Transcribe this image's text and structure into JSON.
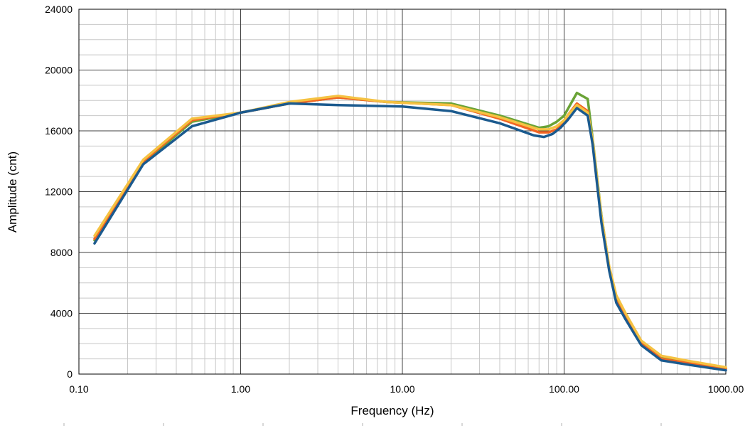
{
  "chart_data": {
    "type": "line",
    "title": "",
    "xlabel": "Frequency  (Hz)",
    "ylabel": "Amplitude (cnt)",
    "xscale": "log",
    "xlim": [
      0.1,
      1000
    ],
    "ylim": [
      0,
      24000
    ],
    "grid": true,
    "x_ticks": [
      {
        "value": 0.1,
        "label": "0.10"
      },
      {
        "value": 1,
        "label": "1.00"
      },
      {
        "value": 10,
        "label": "10.00"
      },
      {
        "value": 100,
        "label": "100.00"
      },
      {
        "value": 1000,
        "label": "1000.00"
      }
    ],
    "y_ticks": [
      {
        "value": 0,
        "label": "0"
      },
      {
        "value": 4000,
        "label": "4000"
      },
      {
        "value": 8000,
        "label": "8000"
      },
      {
        "value": 12000,
        "label": "12000"
      },
      {
        "value": 16000,
        "label": "16000"
      },
      {
        "value": 20000,
        "label": "20000"
      },
      {
        "value": 24000,
        "label": "24000"
      }
    ],
    "series": [
      {
        "color": "#6AA336",
        "points": [
          [
            0.125,
            8800
          ],
          [
            0.25,
            13900
          ],
          [
            0.5,
            16600
          ],
          [
            1,
            17200
          ],
          [
            2,
            17800
          ],
          [
            4,
            18200
          ],
          [
            8,
            17900
          ],
          [
            20,
            17800
          ],
          [
            40,
            17000
          ],
          [
            70,
            16200
          ],
          [
            80,
            16300
          ],
          [
            90,
            16600
          ],
          [
            100,
            17000
          ],
          [
            105,
            17400
          ],
          [
            120,
            18500
          ],
          [
            140,
            18100
          ],
          [
            150,
            15500
          ],
          [
            170,
            10500
          ],
          [
            190,
            7000
          ],
          [
            210,
            5000
          ],
          [
            240,
            3900
          ],
          [
            300,
            2100
          ],
          [
            400,
            1100
          ],
          [
            600,
            750
          ],
          [
            1000,
            380
          ]
        ]
      },
      {
        "color": "#F26522",
        "points": [
          [
            0.125,
            8900
          ],
          [
            0.25,
            14000
          ],
          [
            0.5,
            16700
          ],
          [
            1,
            17200
          ],
          [
            2,
            17800
          ],
          [
            4,
            18200
          ],
          [
            8,
            17900
          ],
          [
            20,
            17700
          ],
          [
            40,
            16800
          ],
          [
            70,
            15900
          ],
          [
            80,
            15900
          ],
          [
            90,
            16100
          ],
          [
            100,
            16600
          ],
          [
            105,
            17000
          ],
          [
            120,
            17800
          ],
          [
            140,
            17300
          ],
          [
            150,
            15300
          ],
          [
            170,
            10200
          ],
          [
            190,
            6900
          ],
          [
            210,
            4800
          ],
          [
            240,
            3800
          ],
          [
            300,
            2000
          ],
          [
            400,
            1000
          ],
          [
            600,
            700
          ],
          [
            1000,
            350
          ]
        ]
      },
      {
        "color": "#F5C242",
        "points": [
          [
            0.125,
            9100
          ],
          [
            0.25,
            14100
          ],
          [
            0.5,
            16800
          ],
          [
            1,
            17200
          ],
          [
            2,
            17900
          ],
          [
            4,
            18300
          ],
          [
            8,
            17900
          ],
          [
            20,
            17700
          ],
          [
            40,
            16900
          ],
          [
            70,
            16100
          ],
          [
            80,
            16100
          ],
          [
            90,
            16300
          ],
          [
            100,
            16700
          ],
          [
            105,
            17000
          ],
          [
            120,
            17700
          ],
          [
            140,
            17200
          ],
          [
            150,
            15400
          ],
          [
            170,
            10400
          ],
          [
            190,
            7100
          ],
          [
            210,
            5200
          ],
          [
            240,
            4000
          ],
          [
            300,
            2200
          ],
          [
            400,
            1200
          ],
          [
            600,
            850
          ],
          [
            1000,
            450
          ]
        ]
      },
      {
        "color": "#1B5A8E",
        "points": [
          [
            0.125,
            8600
          ],
          [
            0.25,
            13800
          ],
          [
            0.5,
            16300
          ],
          [
            1,
            17200
          ],
          [
            2,
            17800
          ],
          [
            4,
            17700
          ],
          [
            10,
            17600
          ],
          [
            20,
            17300
          ],
          [
            40,
            16500
          ],
          [
            65,
            15700
          ],
          [
            75,
            15600
          ],
          [
            85,
            15800
          ],
          [
            95,
            16200
          ],
          [
            105,
            16700
          ],
          [
            120,
            17500
          ],
          [
            140,
            17000
          ],
          [
            150,
            15100
          ],
          [
            170,
            10000
          ],
          [
            190,
            6800
          ],
          [
            210,
            4700
          ],
          [
            240,
            3600
          ],
          [
            300,
            1900
          ],
          [
            400,
            900
          ],
          [
            600,
            600
          ],
          [
            1000,
            250
          ]
        ]
      }
    ]
  }
}
